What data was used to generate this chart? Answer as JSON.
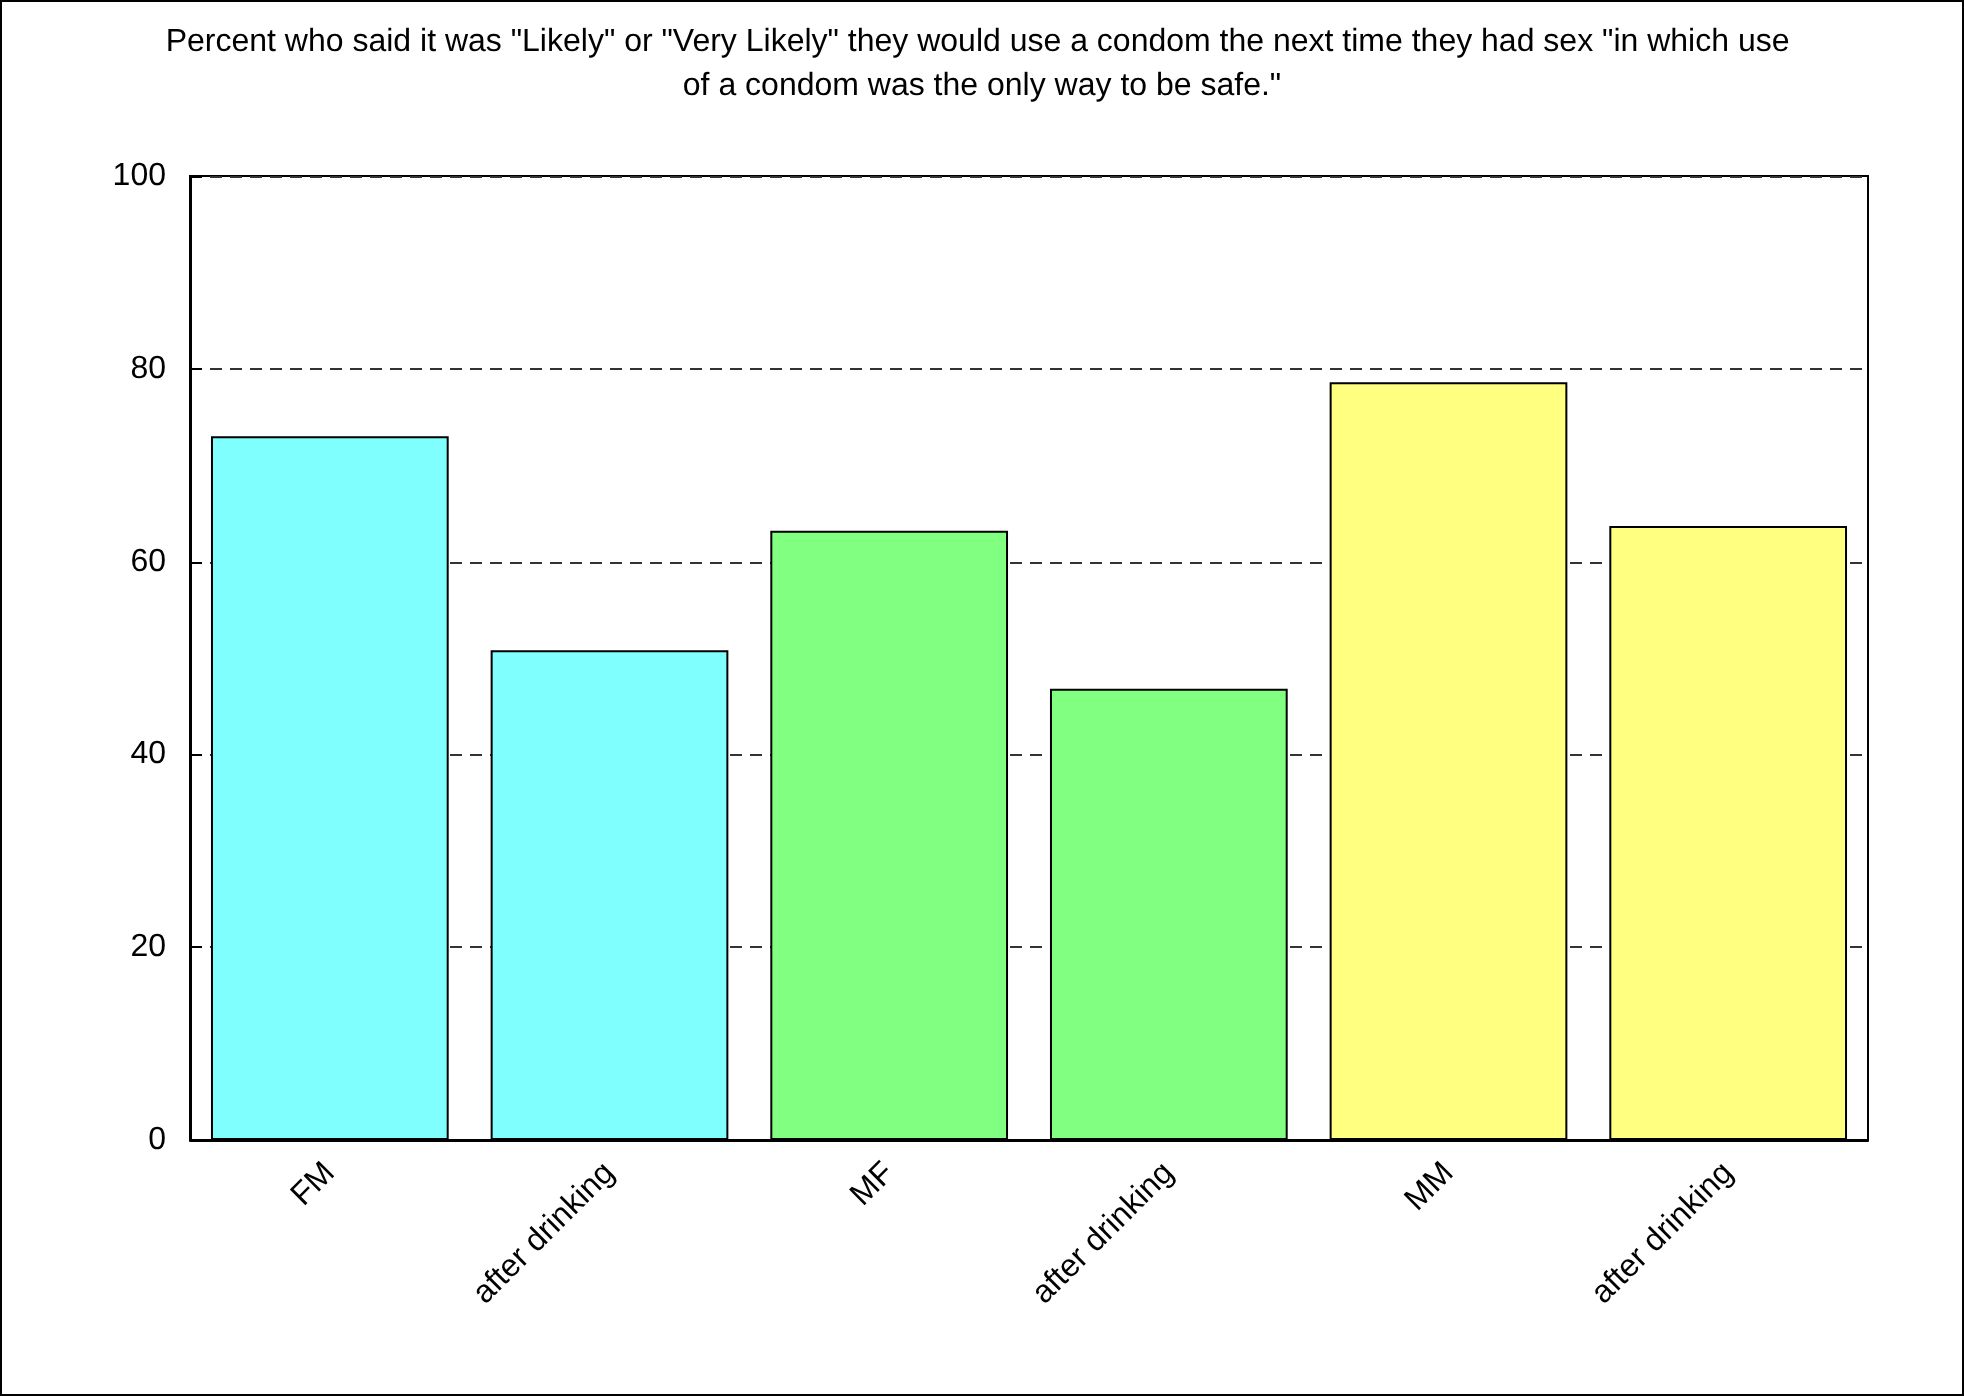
{
  "chart_data": {
    "type": "bar",
    "title": "Percent who said it was \"Likely\" or \"Very Likely\" they would use a condom the next time they had sex \"in which use of a condom was the only way to be safe.\"",
    "categories": [
      "FM",
      "after drinking",
      "MF",
      "after drinking",
      "MM",
      "after drinking"
    ],
    "values": [
      73,
      50.8,
      63.2,
      46.8,
      78.6,
      63.7
    ],
    "colors": [
      "#80ffff",
      "#80ffff",
      "#80ff80",
      "#80ff80",
      "#ffff80",
      "#ffff80"
    ],
    "ylim": [
      0,
      100
    ],
    "yticks": [
      0,
      20,
      40,
      60,
      80,
      100
    ],
    "grid": "y"
  }
}
